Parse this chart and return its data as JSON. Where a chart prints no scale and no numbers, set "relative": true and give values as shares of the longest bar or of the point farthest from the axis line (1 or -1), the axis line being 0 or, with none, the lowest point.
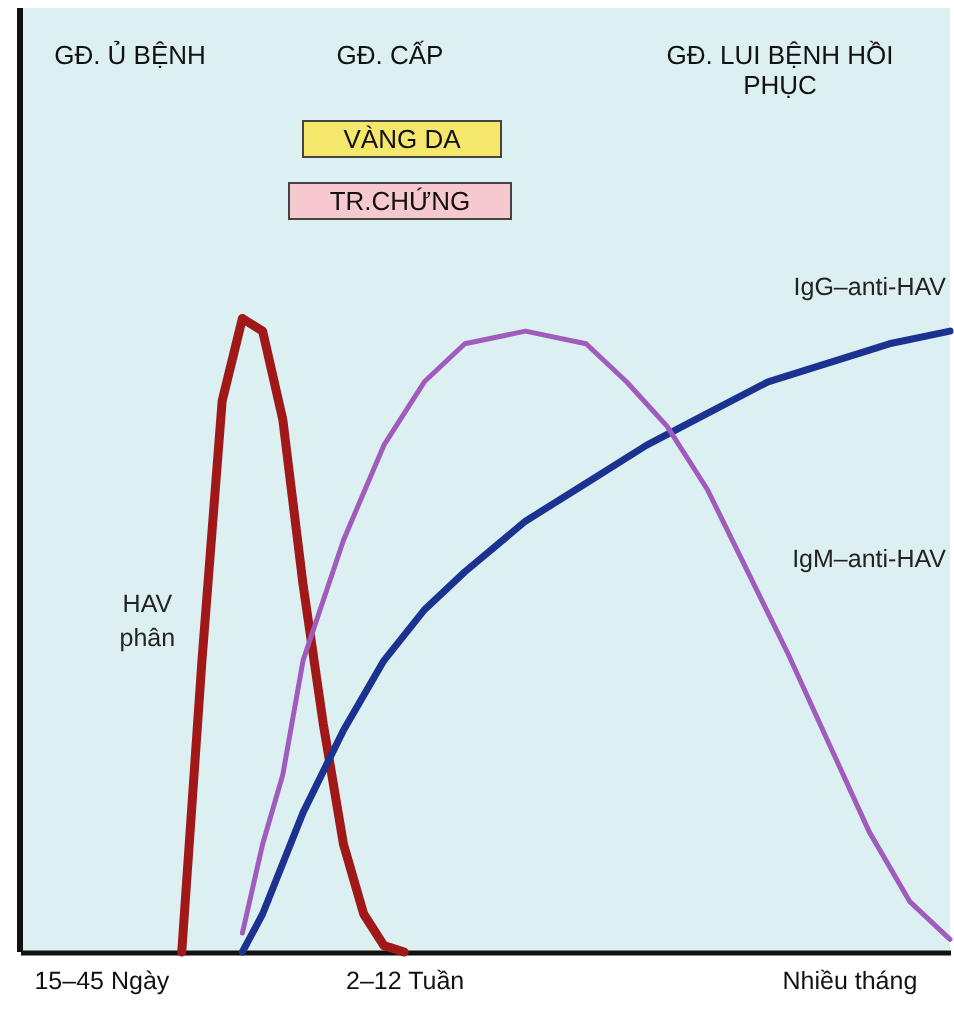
{
  "chart_data": {
    "type": "line",
    "relative": true,
    "grid": false,
    "annotations": [
      "GĐ. Ủ BỆNH",
      "GĐ. CẤP",
      "GĐ. LUI BỆNH HỒI PHỤC",
      "VÀNG DA",
      "TR.CHỨNG"
    ],
    "categories": [
      null,
      null,
      null,
      null,
      "15–45 Ngày",
      null,
      null,
      null,
      null,
      null,
      null,
      null,
      null,
      null,
      null,
      null,
      null,
      null,
      null,
      "2–12 Tuần",
      null,
      null,
      null,
      null,
      null,
      null,
      null,
      null,
      null,
      null,
      null,
      null,
      null,
      null,
      null,
      null,
      null,
      null,
      null,
      null,
      null,
      "Nhiều tháng",
      null,
      null,
      null,
      null,
      null
    ],
    "series": [
      {
        "name": "HAV phân",
        "color": "#a01818",
        "values": [
          null,
          null,
          null,
          null,
          null,
          null,
          null,
          null,
          0,
          0.46,
          0.87,
          1,
          0.98,
          0.84,
          0.58,
          0.36,
          0.17,
          0.06,
          0.01,
          0,
          null,
          null,
          null,
          null,
          null,
          null,
          null,
          null,
          null,
          null,
          null,
          null,
          null,
          null,
          null,
          null,
          null,
          null,
          null,
          null,
          null,
          null,
          null,
          null,
          null,
          null,
          null
        ]
      },
      {
        "name": "IgG–anti-HAV",
        "color": "#1c3290",
        "values": [
          null,
          null,
          null,
          null,
          null,
          null,
          null,
          null,
          null,
          null,
          null,
          0,
          0.06,
          null,
          0.22,
          null,
          0.35,
          null,
          0.46,
          null,
          0.54,
          null,
          0.6,
          null,
          null,
          0.68,
          null,
          null,
          0.74,
          null,
          null,
          0.8,
          null,
          null,
          0.85,
          null,
          null,
          0.9,
          null,
          null,
          0.93,
          null,
          null,
          0.96,
          null,
          null,
          0.98
        ]
      },
      {
        "name": "IgM–anti-HAV",
        "color": "#a05cbc",
        "values": [
          null,
          null,
          null,
          null,
          null,
          null,
          null,
          null,
          null,
          null,
          null,
          0.03,
          0.17,
          0.28,
          0.46,
          null,
          0.65,
          null,
          0.8,
          null,
          0.9,
          null,
          0.96,
          null,
          null,
          0.98,
          null,
          null,
          0.96,
          null,
          0.9,
          null,
          0.83,
          null,
          0.73,
          null,
          0.6,
          null,
          0.47,
          null,
          0.33,
          null,
          0.19,
          null,
          0.08,
          null,
          0.02
        ]
      }
    ]
  }
}
